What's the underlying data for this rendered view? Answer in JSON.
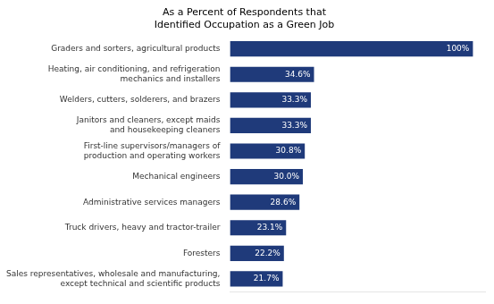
{
  "chart_data": {
    "type": "bar",
    "orientation": "horizontal",
    "title": "As a Percent of Respondents that\nIdentified Occupation as a Green Job",
    "categories": [
      "Sales representatives, wholesale and manufacturing,\nexcept technical and scientific products",
      "Foresters",
      "Truck drivers, heavy and tractor-trailer",
      "Administrative services managers",
      "Mechanical engineers",
      "First-line supervisors/managers of\nproduction and operating workers",
      "Janitors and cleaners, except maids\nand housekeeping cleaners",
      "Welders, cutters, solderers, and brazers",
      "Heating, air conditioning, and refrigeration\nmechanics and installers",
      "Graders and sorters, agricultural products"
    ],
    "values": [
      21.7,
      22.2,
      23.1,
      28.6,
      30.0,
      30.8,
      33.3,
      33.3,
      34.6,
      100.0
    ],
    "value_labels": [
      "21.7%",
      "22.2%",
      "23.1%",
      "28.6%",
      "30.0%",
      "30.8%",
      "33.3%",
      "33.3%",
      "34.6%",
      "100%"
    ],
    "data_labels": true,
    "color": "#1F3A7A",
    "xlim": [
      0,
      105
    ],
    "grid": false,
    "tick_labels": "y"
  }
}
